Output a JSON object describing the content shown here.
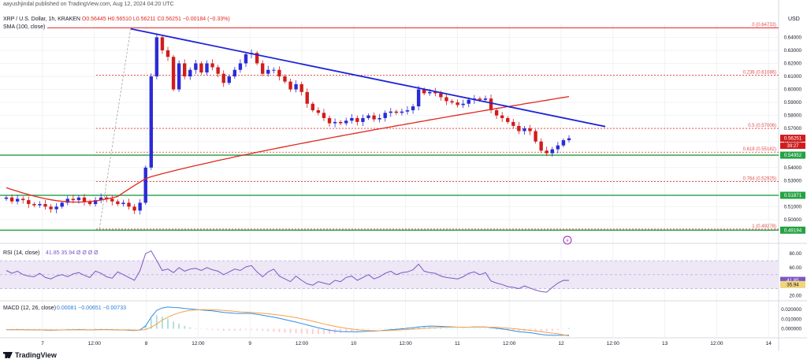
{
  "header": {
    "published": "aayushjindal published on TradingView.com, Aug 12, 2024 04:20 UTC",
    "symbol": "XRP / U.S. Dollar, 1h, KRAKEN",
    "ohlc": "O0.56445 H0.56510 L0.56211 C0.56251 −0.00184 (−0.33%)",
    "sma": "SMA (100, close)",
    "currency": "USD"
  },
  "footer": {
    "brand": "TradingView"
  },
  "colors": {
    "up": "#2b2bd6",
    "down": "#d11c1c",
    "sma": "#e0281e",
    "trend": "#1f24d6",
    "support": "#25a244",
    "fib": "#e33b3b",
    "rsi": "#7e57c2",
    "macd": "#2e8fe6",
    "signal": "#f5a14b",
    "rsi_band": "#ede7f6"
  },
  "chart_data": [
    {
      "type": "candlestick",
      "title": "XRP / U.S. Dollar, 1h, KRAKEN",
      "x_labels": [
        "7",
        "12:00",
        "8",
        "12:00",
        "9",
        "12:00",
        "10",
        "12:00",
        "11",
        "12:00",
        "12",
        "12:00",
        "13",
        "12:00",
        "14"
      ],
      "y_ticks": [
        0.64,
        0.63,
        0.62,
        0.61,
        0.6,
        0.59,
        0.58,
        0.57,
        0.56,
        0.55,
        0.54,
        0.53,
        0.52,
        0.51,
        0.5
      ],
      "ylim": [
        0.4885,
        0.6505
      ],
      "close_series": [
        0.517,
        0.514,
        0.516,
        0.515,
        0.512,
        0.511,
        0.512,
        0.51,
        0.508,
        0.51,
        0.513,
        0.516,
        0.515,
        0.517,
        0.514,
        0.512,
        0.515,
        0.517,
        0.516,
        0.514,
        0.512,
        0.513,
        0.51,
        0.507,
        0.513,
        0.54,
        0.61,
        0.64,
        0.63,
        0.625,
        0.6,
        0.62,
        0.61,
        0.615,
        0.62,
        0.613,
        0.62,
        0.617,
        0.612,
        0.605,
        0.61,
        0.615,
        0.62,
        0.627,
        0.628,
        0.62,
        0.612,
        0.615,
        0.615,
        0.61,
        0.606,
        0.6,
        0.604,
        0.598,
        0.589,
        0.584,
        0.582,
        0.578,
        0.574,
        0.575,
        0.574,
        0.576,
        0.578,
        0.575,
        0.578,
        0.58,
        0.577,
        0.578,
        0.582,
        0.583,
        0.582,
        0.583,
        0.584,
        0.587,
        0.6,
        0.597,
        0.598,
        0.597,
        0.594,
        0.591,
        0.59,
        0.588,
        0.589,
        0.592,
        0.593,
        0.592,
        0.593,
        0.584,
        0.58,
        0.578,
        0.575,
        0.572,
        0.568,
        0.57,
        0.568,
        0.56,
        0.553,
        0.551,
        0.554,
        0.557,
        0.561,
        0.5625
      ],
      "sma_label": "SMA (100, close)",
      "price_labels": [
        "0.56251",
        "0.54952",
        "0.51871",
        "0.49194"
      ],
      "countdown": "39:27",
      "fib_levels": [
        {
          "label": "0 (0.64733)",
          "value": 0.64733
        },
        {
          "label": "0.236 (0.61086)",
          "value": 0.61086
        },
        {
          "label": "0.5 (0.57006)",
          "value": 0.57006
        },
        {
          "label": "0.618 (0.55182)",
          "value": 0.55182
        },
        {
          "label": "0.764 (0.52925)",
          "value": 0.52925
        },
        {
          "label": "1 (0.49278)",
          "value": 0.49278
        }
      ],
      "support_levels": [
        0.54952,
        0.51871,
        0.49194
      ],
      "trend_line": {
        "from": [
          0.6465
        ],
        "to": [
          0.5715
        ]
      }
    },
    {
      "type": "line",
      "title": "RSI (14, close)",
      "values_text": "41.85 35.94 Ø Ø Ø Ø",
      "y_ticks": [
        80.0,
        60.0,
        40.0,
        20.0
      ],
      "ylim": [
        15,
        88
      ],
      "band": [
        30,
        70
      ],
      "series": [
        {
          "name": "RSI",
          "values": [
            56,
            52,
            55,
            50,
            48,
            47,
            52,
            46,
            44,
            48,
            50,
            47,
            51,
            53,
            49,
            46,
            55,
            52,
            47,
            45,
            54,
            50,
            46,
            42,
            56,
            80,
            84,
            70,
            56,
            58,
            53,
            60,
            55,
            58,
            59,
            56,
            60,
            57,
            55,
            50,
            54,
            58,
            56,
            61,
            63,
            54,
            47,
            54,
            58,
            48,
            44,
            40,
            48,
            42,
            37,
            35,
            40,
            38,
            36,
            42,
            40,
            46,
            48,
            42,
            46,
            50,
            44,
            47,
            52,
            55,
            50,
            53,
            54,
            57,
            65,
            55,
            53,
            52,
            48,
            46,
            45,
            44,
            47,
            52,
            54,
            50,
            53,
            41,
            38,
            36,
            33,
            32,
            30,
            34,
            31,
            28,
            26,
            25,
            32,
            38,
            42,
            41.85
          ]
        }
      ]
    },
    {
      "type": "line",
      "title": "MACD (12, 26, close)",
      "values_text": "0.00081 −0.00651 −0.00733",
      "y_ticks": [
        0.02,
        0.01,
        0.0
      ],
      "ylim": [
        -0.0085,
        0.0265
      ],
      "series": [
        {
          "name": "MACD",
          "values": [
            -0.001,
            -0.001,
            -0.0008,
            -0.0009,
            -0.0011,
            -0.0012,
            -0.0011,
            -0.0013,
            -0.0015,
            -0.0014,
            -0.0012,
            -0.001,
            -0.0009,
            -0.0008,
            -0.001,
            -0.0012,
            -0.001,
            -0.0008,
            -0.0008,
            -0.001,
            -0.0012,
            -0.0012,
            -0.0015,
            -0.0018,
            -0.0012,
            0.003,
            0.012,
            0.019,
            0.0215,
            0.0225,
            0.022,
            0.0218,
            0.021,
            0.0205,
            0.02,
            0.0195,
            0.019,
            0.0185,
            0.0178,
            0.017,
            0.0165,
            0.016,
            0.0158,
            0.016,
            0.0158,
            0.015,
            0.014,
            0.013,
            0.012,
            0.0108,
            0.0095,
            0.0082,
            0.007,
            0.0055,
            0.004,
            0.0025,
            0.001,
            -0.0003,
            -0.0015,
            -0.0022,
            -0.0028,
            -0.003,
            -0.003,
            -0.0031,
            -0.0028,
            -0.0025,
            -0.0024,
            -0.002,
            -0.0015,
            -0.001,
            -0.0005,
            0.0,
            0.0005,
            0.001,
            0.0018,
            0.0025,
            0.0028,
            0.0027,
            0.0025,
            0.0022,
            0.002,
            0.0017,
            0.0016,
            0.0017,
            0.0018,
            0.0018,
            0.0018,
            0.0012,
            0.0005,
            -0.0002,
            -0.001,
            -0.002,
            -0.003,
            -0.0035,
            -0.004,
            -0.0048,
            -0.0058,
            -0.0065,
            -0.0068,
            -0.0067,
            -0.0066,
            -0.00651
          ]
        },
        {
          "name": "Signal",
          "values": [
            -0.0008,
            -0.0009,
            -0.0009,
            -0.0009,
            -0.001,
            -0.001,
            -0.0011,
            -0.0011,
            -0.0012,
            -0.0012,
            -0.0012,
            -0.0012,
            -0.0011,
            -0.0011,
            -0.0011,
            -0.0011,
            -0.0011,
            -0.001,
            -0.001,
            -0.001,
            -0.001,
            -0.0011,
            -0.0011,
            -0.0013,
            -0.0013,
            -0.0008,
            0.0015,
            0.005,
            0.009,
            0.012,
            0.0145,
            0.0165,
            0.018,
            0.019,
            0.0195,
            0.0198,
            0.0198,
            0.0196,
            0.0193,
            0.019,
            0.0185,
            0.018,
            0.0175,
            0.0172,
            0.0169,
            0.0165,
            0.016,
            0.0155,
            0.0149,
            0.0142,
            0.0134,
            0.0125,
            0.0115,
            0.0104,
            0.0092,
            0.0079,
            0.0065,
            0.0051,
            0.0037,
            0.0025,
            0.0014,
            0.0005,
            -0.0003,
            -0.001,
            -0.0015,
            -0.0018,
            -0.002,
            -0.002,
            -0.0019,
            -0.0017,
            -0.0014,
            -0.0011,
            -0.0008,
            -0.0004,
            0.0,
            0.0005,
            0.0009,
            0.0012,
            0.0015,
            0.0016,
            0.0017,
            0.0017,
            0.0017,
            0.0017,
            0.0017,
            0.0017,
            0.0017,
            0.0016,
            0.0014,
            0.0011,
            0.0007,
            0.0002,
            -0.0004,
            -0.001,
            -0.0016,
            -0.0023,
            -0.003,
            -0.0038,
            -0.0045,
            -0.0052,
            -0.0062,
            -0.00733
          ]
        }
      ]
    }
  ]
}
